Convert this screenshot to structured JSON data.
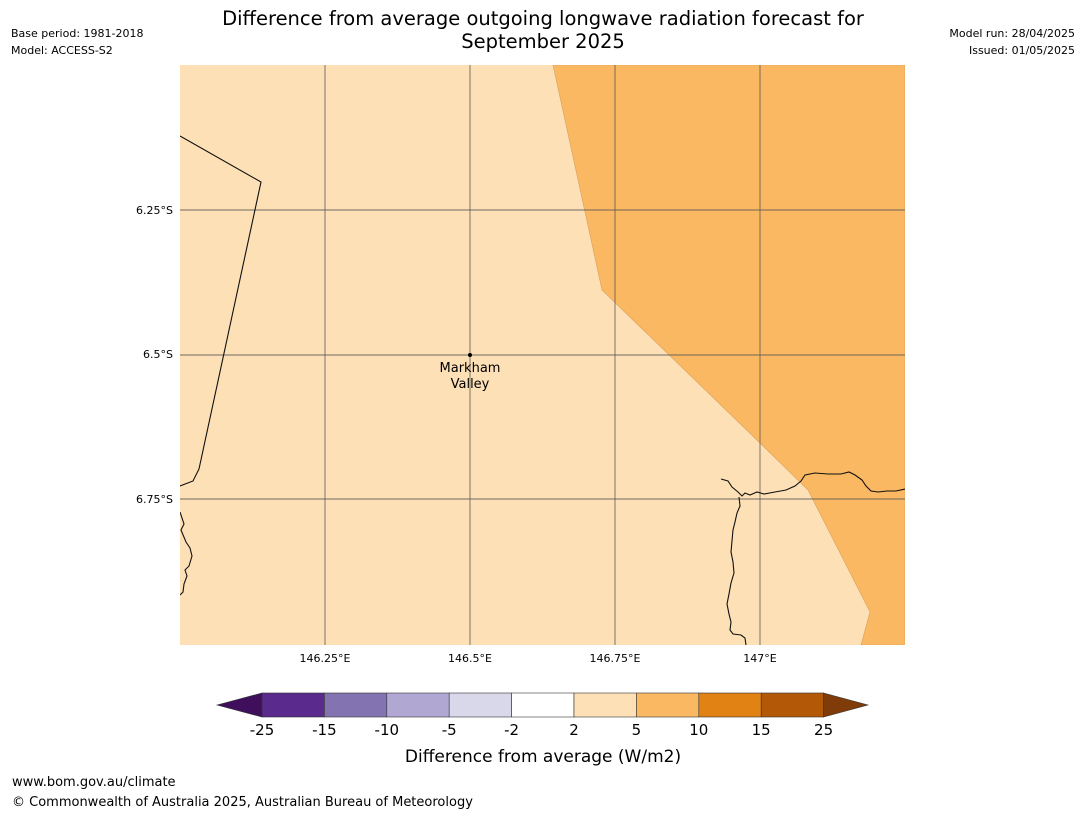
{
  "header": {
    "base_period": "Base period: 1981-2018",
    "model": "Model: ACCESS-S2",
    "title_line1": "Difference from average outgoing longwave radiation forecast for",
    "title_line2": "September 2025",
    "model_run": "Model run: 28/04/2025",
    "issued": "Issued: 01/05/2025"
  },
  "map": {
    "lat_labels": [
      "6.25°S",
      "6.5°S",
      "6.75°S"
    ],
    "lon_labels": [
      "146.25°E",
      "146.5°E",
      "146.75°E",
      "147°E"
    ],
    "place": {
      "name_line1": "Markham",
      "name_line2": "Valley"
    },
    "fill_colors": {
      "band_2_5": "#fde0b6",
      "band_5_10": "#fbb862"
    }
  },
  "colorbar": {
    "label": "Difference from average (W/m2)",
    "ticks": [
      "-25",
      "-15",
      "-10",
      "-5",
      "-2",
      "2",
      "5",
      "10",
      "15",
      "25"
    ],
    "colors": [
      "#3f0f5c",
      "#5a2a8d",
      "#8373b0",
      "#b0a8d3",
      "#d8d8ea",
      "#ffffff",
      "#fde0b6",
      "#fbb862",
      "#e08214",
      "#b35806",
      "#7f3b08"
    ]
  },
  "footer": {
    "url": "www.bom.gov.au/climate",
    "copyright": "© Commonwealth of Australia 2025, Australian Bureau of Meteorology"
  }
}
